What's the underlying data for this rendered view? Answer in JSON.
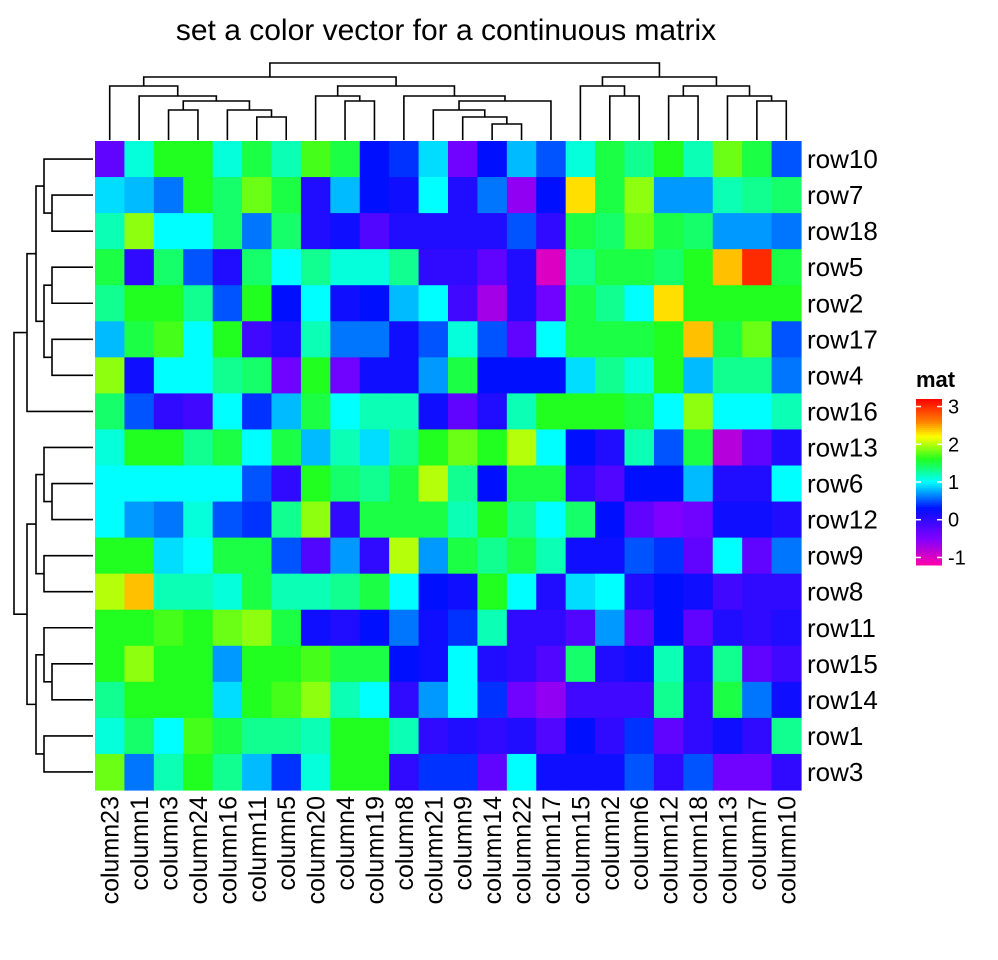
{
  "chart_data": {
    "type": "heatmap",
    "title": "set a color vector for a continuous matrix",
    "rows": [
      "row10",
      "row7",
      "row18",
      "row5",
      "row2",
      "row17",
      "row4",
      "row16",
      "row13",
      "row6",
      "row12",
      "row9",
      "row8",
      "row11",
      "row15",
      "row14",
      "row1",
      "row3"
    ],
    "columns": [
      "column23",
      "column1",
      "column3",
      "column24",
      "column16",
      "column11",
      "column5",
      "column20",
      "column4",
      "column19",
      "column8",
      "column21",
      "column9",
      "column14",
      "column22",
      "column17",
      "column15",
      "column2",
      "column6",
      "column12",
      "column18",
      "column13",
      "column7",
      "column10"
    ],
    "values": [
      [
        -0.3,
        1.1,
        1.6,
        1.6,
        1.1,
        1.5,
        1.2,
        1.7,
        1.5,
        0.3,
        0.4,
        0.9,
        -0.4,
        0.3,
        0.8,
        0.5,
        1.1,
        1.5,
        1.3,
        1.6,
        1.2,
        1.8,
        1.5,
        0.5
      ],
      [
        0.9,
        0.8,
        0.6,
        1.6,
        1.4,
        1.8,
        1.5,
        0.1,
        0.8,
        0.3,
        0.2,
        1.0,
        0.1,
        0.6,
        -0.6,
        0.3,
        2.3,
        1.5,
        1.9,
        0.7,
        0.7,
        1.2,
        1.3,
        1.4
      ],
      [
        1.2,
        1.9,
        1.0,
        1.0,
        1.4,
        0.6,
        1.4,
        0.1,
        0.2,
        -0.2,
        0.1,
        0.1,
        0.1,
        0.1,
        0.5,
        0.0,
        1.5,
        1.4,
        1.8,
        1.5,
        1.4,
        0.7,
        0.7,
        0.6
      ],
      [
        1.5,
        0.0,
        1.4,
        0.5,
        0.1,
        1.4,
        1.0,
        1.3,
        1.1,
        1.1,
        1.3,
        0.0,
        0.0,
        -0.3,
        0.1,
        -1.0,
        1.3,
        1.5,
        1.5,
        1.4,
        1.6,
        2.4,
        3.0,
        1.5
      ],
      [
        1.3,
        1.6,
        1.6,
        1.3,
        0.5,
        1.6,
        0.3,
        1.0,
        0.2,
        0.3,
        0.8,
        1.0,
        -0.1,
        -0.7,
        0.1,
        -0.4,
        1.5,
        1.3,
        1.0,
        2.3,
        1.6,
        1.6,
        1.6,
        1.6
      ],
      [
        0.8,
        1.5,
        1.7,
        1.0,
        1.6,
        -0.1,
        0.1,
        1.2,
        0.6,
        0.6,
        0.2,
        0.5,
        1.1,
        0.5,
        -0.3,
        1.0,
        1.5,
        1.5,
        1.5,
        1.6,
        2.4,
        1.5,
        1.8,
        0.5
      ],
      [
        1.9,
        0.2,
        1.0,
        1.0,
        1.3,
        1.4,
        -0.4,
        1.6,
        -0.4,
        0.2,
        0.2,
        0.7,
        1.5,
        0.3,
        0.3,
        0.3,
        0.9,
        1.3,
        1.1,
        1.6,
        0.8,
        1.3,
        1.3,
        0.6
      ],
      [
        1.4,
        0.5,
        0.0,
        -0.1,
        1.0,
        0.4,
        0.8,
        1.5,
        1.0,
        1.2,
        1.2,
        0.2,
        -0.3,
        0.1,
        1.2,
        1.6,
        1.6,
        1.6,
        1.5,
        1.0,
        1.9,
        1.0,
        1.0,
        1.2
      ],
      [
        1.1,
        1.6,
        1.6,
        1.3,
        1.5,
        1.0,
        1.5,
        0.8,
        1.2,
        0.9,
        1.3,
        1.6,
        1.8,
        1.6,
        2.0,
        1.0,
        0.3,
        0.1,
        1.2,
        0.5,
        1.5,
        -0.8,
        -0.3,
        0.1
      ],
      [
        1.0,
        1.0,
        1.0,
        1.0,
        1.0,
        0.5,
        0.0,
        1.6,
        1.4,
        1.3,
        1.5,
        2.0,
        1.3,
        0.3,
        1.5,
        1.5,
        0.0,
        -0.2,
        0.3,
        0.3,
        0.8,
        0.1,
        0.1,
        1.0
      ],
      [
        1.0,
        0.7,
        0.6,
        1.1,
        0.5,
        0.4,
        1.3,
        1.9,
        0.0,
        1.5,
        1.5,
        1.5,
        1.2,
        1.6,
        1.3,
        1.0,
        1.4,
        0.3,
        -0.3,
        -0.5,
        -0.4,
        0.2,
        0.2,
        0.1
      ],
      [
        1.6,
        1.6,
        0.9,
        1.0,
        1.5,
        1.5,
        0.5,
        -0.2,
        0.7,
        0.0,
        2.0,
        0.7,
        1.5,
        1.3,
        1.5,
        1.2,
        0.2,
        0.2,
        0.5,
        0.4,
        -0.3,
        1.0,
        -0.3,
        0.6
      ],
      [
        2.0,
        2.4,
        1.2,
        1.2,
        1.1,
        1.5,
        1.2,
        1.2,
        1.3,
        1.5,
        1.0,
        0.3,
        0.2,
        1.6,
        1.0,
        0.1,
        0.9,
        1.0,
        0.1,
        0.3,
        0.2,
        -0.1,
        0.0,
        0.0
      ],
      [
        1.6,
        1.6,
        1.7,
        1.6,
        1.8,
        1.9,
        1.5,
        0.2,
        0.1,
        0.3,
        0.6,
        0.2,
        0.4,
        1.2,
        0.0,
        0.0,
        -0.2,
        0.7,
        -0.3,
        0.3,
        -0.3,
        0.1,
        0.0,
        0.1
      ],
      [
        1.6,
        1.9,
        1.6,
        1.6,
        0.7,
        1.6,
        1.6,
        1.7,
        1.5,
        1.5,
        0.3,
        0.2,
        1.0,
        0.1,
        0.0,
        -0.2,
        1.4,
        0.1,
        0.2,
        1.2,
        0.1,
        1.3,
        -0.3,
        -0.1
      ],
      [
        1.3,
        1.6,
        1.6,
        1.6,
        0.9,
        1.6,
        1.7,
        1.9,
        1.2,
        1.0,
        0.0,
        0.7,
        1.0,
        0.4,
        -0.4,
        -0.6,
        -0.1,
        -0.1,
        -0.1,
        1.3,
        0.0,
        1.5,
        0.6,
        0.2
      ],
      [
        1.1,
        1.4,
        1.0,
        1.7,
        1.5,
        1.3,
        1.3,
        1.2,
        1.6,
        1.6,
        1.2,
        0.0,
        0.1,
        0.0,
        0.1,
        -0.2,
        0.3,
        0.0,
        0.4,
        -0.3,
        0.0,
        0.2,
        0.0,
        1.3
      ],
      [
        1.8,
        0.6,
        1.2,
        1.6,
        1.3,
        0.8,
        0.4,
        1.1,
        1.6,
        1.6,
        0.0,
        0.4,
        0.4,
        -0.3,
        1.0,
        0.2,
        0.2,
        0.2,
        0.5,
        0.0,
        0.5,
        -0.4,
        -0.4,
        0.0
      ]
    ],
    "legend": {
      "title": "mat",
      "ticks": [
        3,
        2,
        1,
        0,
        -1
      ],
      "range": [
        -1.2,
        3.2
      ],
      "placement": "right"
    },
    "colorscale": {
      "stops": [
        -1.2,
        -0.5,
        0.3,
        1.0,
        1.6,
        2.2,
        2.6,
        3.2
      ],
      "colors": [
        "#ff00aa",
        "#8000ff",
        "#0010ff",
        "#00ffff",
        "#20ff20",
        "#ffff00",
        "#ff8000",
        "#ff0000"
      ]
    }
  }
}
